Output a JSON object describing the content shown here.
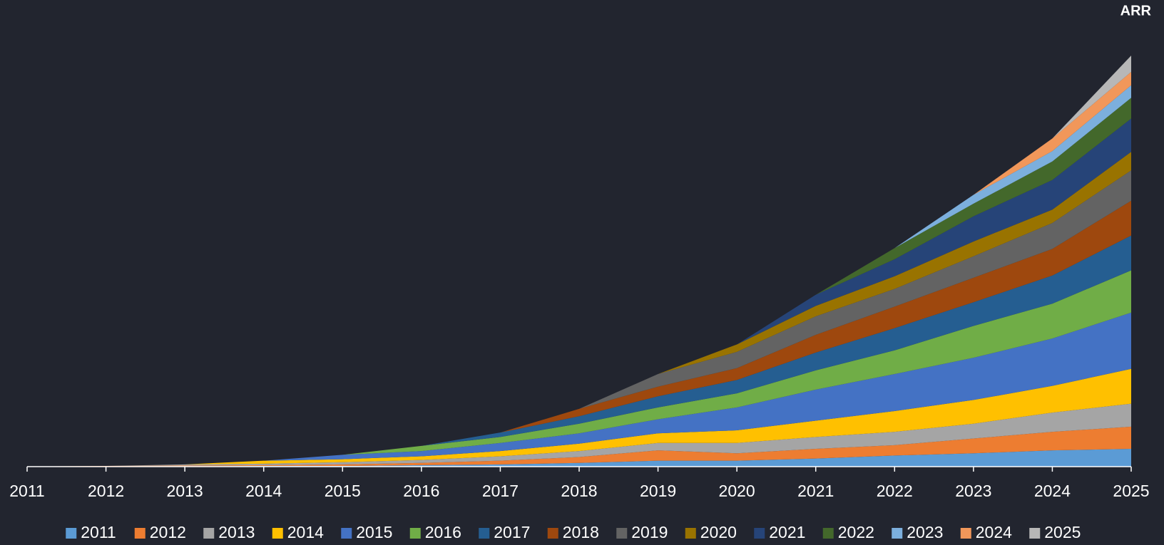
{
  "chart_data": {
    "type": "stacked_area",
    "title": "ARR",
    "categories": [
      "2011",
      "2012",
      "2013",
      "2014",
      "2015",
      "2016",
      "2017",
      "2018",
      "2019",
      "2020",
      "2021",
      "2022",
      "2023",
      "2024",
      "2025"
    ],
    "ylim": [
      0,
      580
    ],
    "series": [
      {
        "name": "2011",
        "color": "#5b9bd5",
        "values": [
          0.2,
          0.5,
          0.5,
          1,
          1,
          2,
          3,
          5,
          8,
          8,
          11,
          15,
          18,
          22,
          24
        ]
      },
      {
        "name": "2012",
        "color": "#ed7d31",
        "values": [
          0,
          0.5,
          1,
          1,
          2,
          3,
          5,
          8,
          14,
          10,
          13,
          14,
          20,
          25,
          30
        ]
      },
      {
        "name": "2013",
        "color": "#a5a5a5",
        "values": [
          0,
          0,
          1.5,
          2,
          3,
          4,
          6,
          8,
          10,
          14,
          16,
          18,
          20,
          26,
          31
        ]
      },
      {
        "name": "2014",
        "color": "#ffc000",
        "values": [
          0,
          0,
          0,
          4,
          4,
          5,
          7,
          10,
          13,
          17,
          22,
          28,
          32,
          36,
          47
        ]
      },
      {
        "name": "2015",
        "color": "#4472c4",
        "values": [
          0,
          0,
          0,
          0,
          6,
          7,
          11,
          14,
          19,
          31,
          42,
          50,
          57,
          64,
          76
        ]
      },
      {
        "name": "2016",
        "color": "#70ad47",
        "values": [
          0,
          0,
          0,
          0,
          0,
          7,
          8,
          13,
          16,
          19,
          26,
          32,
          43,
          47,
          57
        ]
      },
      {
        "name": "2017",
        "color": "#255e91",
        "values": [
          0,
          0,
          0,
          0,
          0,
          0,
          6,
          10,
          15,
          18,
          24,
          30,
          32,
          38,
          47
        ]
      },
      {
        "name": "2018",
        "color": "#9e480e",
        "values": [
          0,
          0,
          0,
          0,
          0,
          0,
          0,
          10,
          13,
          16,
          24,
          29,
          33,
          36,
          47
        ]
      },
      {
        "name": "2019",
        "color": "#636363",
        "values": [
          0,
          0,
          0,
          0,
          0,
          0,
          0,
          0,
          17,
          22,
          25,
          24,
          29,
          35,
          41
        ]
      },
      {
        "name": "2020",
        "color": "#997300",
        "values": [
          0,
          0,
          0,
          0,
          0,
          0,
          0,
          0,
          0,
          10,
          14,
          17,
          20,
          18,
          25
        ]
      },
      {
        "name": "2021",
        "color": "#264478",
        "values": [
          0,
          0,
          0,
          0,
          0,
          0,
          0,
          0,
          0,
          0,
          15,
          23,
          34,
          40,
          45
        ]
      },
      {
        "name": "2022",
        "color": "#43682b",
        "values": [
          0,
          0,
          0,
          0,
          0,
          0,
          0,
          0,
          0,
          0,
          0,
          15,
          17,
          25,
          28
        ]
      },
      {
        "name": "2023",
        "color": "#7cafdd",
        "values": [
          0,
          0,
          0,
          0,
          0,
          0,
          0,
          0,
          0,
          0,
          0,
          0,
          12,
          14,
          17
        ]
      },
      {
        "name": "2024",
        "color": "#f1975a",
        "values": [
          0,
          0,
          0,
          0,
          0,
          0,
          0,
          0,
          0,
          0,
          0,
          0,
          0,
          17,
          18
        ]
      },
      {
        "name": "2025",
        "color": "#b7b7b7",
        "values": [
          0,
          0,
          0,
          0,
          0,
          0,
          0,
          0,
          0,
          0,
          0,
          0,
          0,
          0,
          22
        ]
      }
    ]
  }
}
